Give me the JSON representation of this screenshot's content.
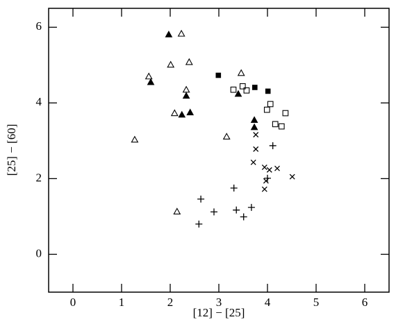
{
  "chart_data": {
    "type": "scatter",
    "xlabel": "[12] − [25]",
    "ylabel": "[25] − [60]",
    "xlim": [
      -0.5,
      6.5
    ],
    "ylim": [
      -1,
      6.5
    ],
    "xticks": [
      0,
      1,
      2,
      3,
      4,
      5,
      6
    ],
    "yticks": [
      0,
      2,
      4,
      6
    ],
    "series": [
      {
        "marker": "filled-triangle",
        "color": "#000000",
        "x": [
          1.97,
          1.6,
          2.33,
          2.24,
          2.41,
          3.4,
          3.73,
          3.73
        ],
        "values": [
          5.81,
          4.55,
          4.19,
          3.69,
          3.75,
          4.24,
          3.55,
          3.36
        ]
      },
      {
        "marker": "open-triangle",
        "color": "#000000",
        "x": [
          2.23,
          1.56,
          2.39,
          2.01,
          3.46,
          2.33,
          2.09,
          1.27,
          3.16,
          2.14
        ],
        "values": [
          5.83,
          4.7,
          5.08,
          5.01,
          4.79,
          4.35,
          3.73,
          3.03,
          3.11,
          1.13
        ]
      },
      {
        "marker": "filled-square",
        "color": "#000000",
        "x": [
          2.99,
          3.74,
          4.01
        ],
        "values": [
          4.73,
          4.41,
          4.31
        ]
      },
      {
        "marker": "open-square",
        "color": "#000000",
        "x": [
          3.3,
          3.49,
          3.57,
          3.99,
          4.06,
          4.37,
          4.16,
          4.29
        ],
        "values": [
          4.35,
          4.44,
          4.33,
          3.82,
          3.97,
          3.73,
          3.44,
          3.38
        ]
      },
      {
        "marker": "cross",
        "color": "#000000",
        "x": [
          3.76,
          3.76,
          3.71,
          3.94,
          4.04,
          4.2,
          4.51,
          3.97,
          3.94
        ],
        "values": [
          3.16,
          2.78,
          2.43,
          2.3,
          2.23,
          2.27,
          2.05,
          1.94,
          1.72
        ]
      },
      {
        "marker": "plus",
        "color": "#000000",
        "x": [
          4.11,
          4.0,
          3.31,
          2.63,
          2.9,
          3.36,
          3.67,
          3.51,
          2.59
        ],
        "values": [
          2.87,
          2.01,
          1.75,
          1.46,
          1.12,
          1.17,
          1.24,
          0.99,
          0.8
        ]
      }
    ]
  }
}
